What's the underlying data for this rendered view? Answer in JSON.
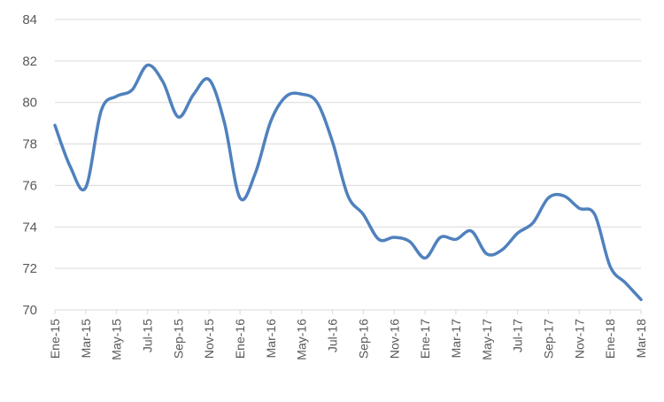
{
  "chart_data": {
    "type": "line",
    "title": "",
    "xlabel": "",
    "ylabel": "",
    "ylim": [
      70,
      84
    ],
    "yticks": [
      70,
      72,
      74,
      76,
      78,
      80,
      82,
      84
    ],
    "grid": true,
    "legend": "none",
    "categories": [
      "Ene-15",
      "Feb-15",
      "Mar-15",
      "Abr-15",
      "May-15",
      "Jun-15",
      "Jul-15",
      "Ago-15",
      "Sep-15",
      "Oct-15",
      "Nov-15",
      "Dic-15",
      "Ene-16",
      "Feb-16",
      "Mar-16",
      "Abr-16",
      "May-16",
      "Jun-16",
      "Jul-16",
      "Ago-16",
      "Sep-16",
      "Oct-16",
      "Nov-16",
      "Dic-16",
      "Ene-17",
      "Feb-17",
      "Mar-17",
      "Abr-17",
      "May-17",
      "Jun-17",
      "Jul-17",
      "Ago-17",
      "Sep-17",
      "Oct-17",
      "Nov-17",
      "Dic-17",
      "Ene-18",
      "Feb-18",
      "Mar-18"
    ],
    "tick_labels": [
      "Ene-15",
      "Mar-15",
      "May-15",
      "Jul-15",
      "Sep-15",
      "Nov-15",
      "Ene-16",
      "Mar-16",
      "May-16",
      "Jul-16",
      "Sep-16",
      "Nov-16",
      "Ene-17",
      "Mar-17",
      "May-17",
      "Jul-17",
      "Sep-17",
      "Nov-17",
      "Ene-18",
      "Mar-18"
    ],
    "series": [
      {
        "color": "#4f81bd",
        "values": [
          78.9,
          76.9,
          75.9,
          79.6,
          80.3,
          80.6,
          81.8,
          81.0,
          79.3,
          80.4,
          81.1,
          79.0,
          75.4,
          76.6,
          79.1,
          80.3,
          80.4,
          80.0,
          78.1,
          75.5,
          74.6,
          73.4,
          73.5,
          73.3,
          72.5,
          73.5,
          73.4,
          73.8,
          72.7,
          72.9,
          73.7,
          74.2,
          75.4,
          75.5,
          74.9,
          74.6,
          72.1,
          71.3,
          70.5
        ]
      }
    ]
  }
}
